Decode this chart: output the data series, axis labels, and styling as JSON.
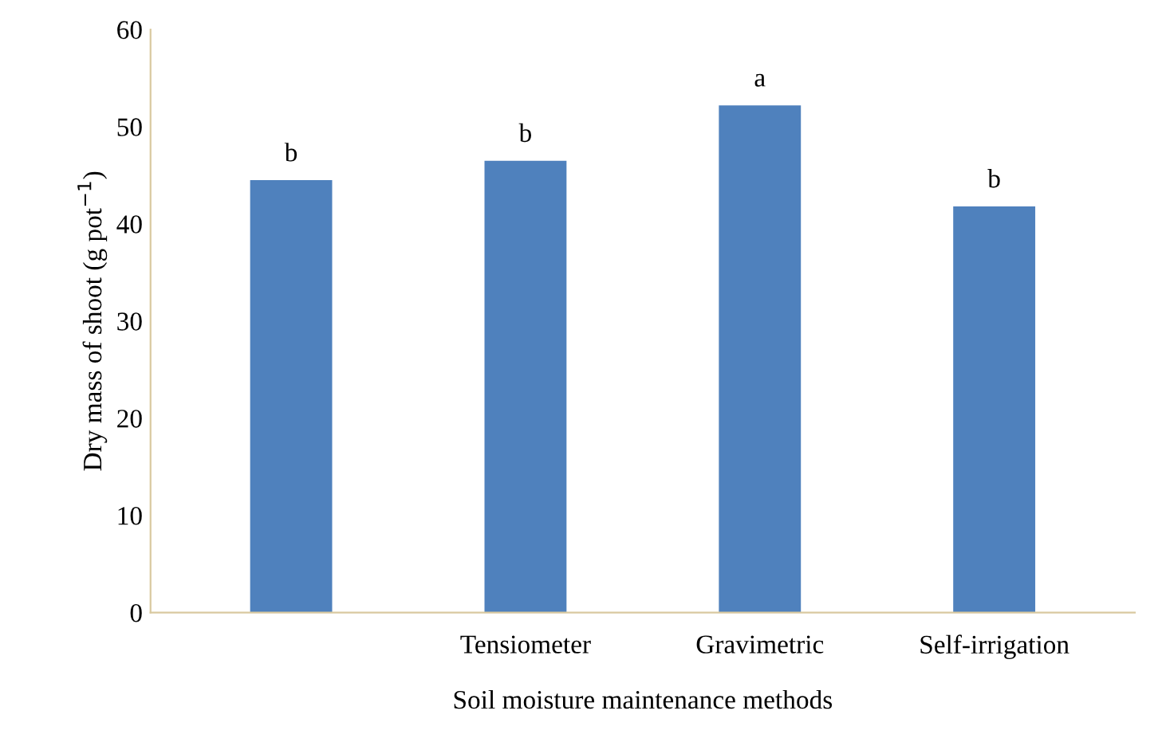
{
  "chart_data": {
    "type": "bar",
    "categories": [
      null,
      "Tensiometer",
      "Gravimetric",
      "Self-irrigation"
    ],
    "values": [
      44.5,
      46.5,
      52.2,
      41.8
    ],
    "value_labels": [
      "b",
      "b",
      "a",
      "b"
    ],
    "color": "#4f81bd",
    "xlabel": "Soil moisture maintenance methods",
    "ylabel": "Dry mass of shoot (g pot$^{−1}$)",
    "ylim": [
      0,
      60
    ],
    "yticks": [
      0,
      10,
      20,
      30,
      40,
      50,
      60
    ],
    "grid": false,
    "legend": false
  }
}
